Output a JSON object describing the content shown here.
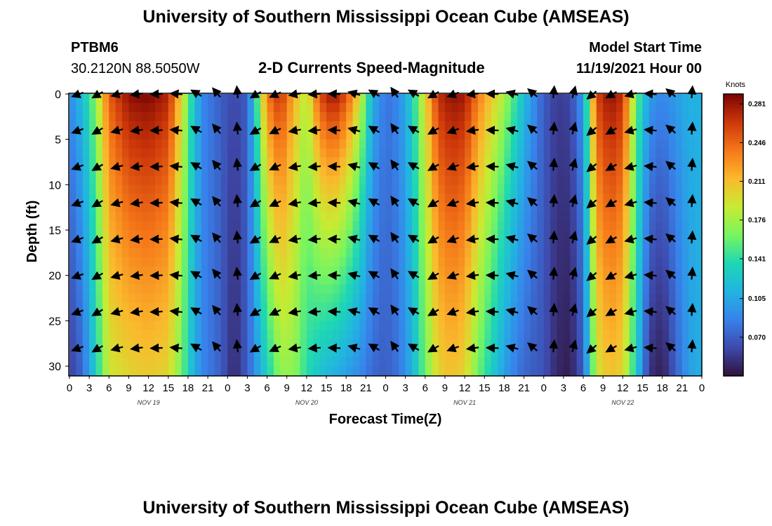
{
  "page": {
    "title": "University of Southern Mississippi Ocean Cube (AMSEAS)",
    "footer_title": "University of Southern Mississippi Ocean Cube (AMSEAS)",
    "station": "PTBM6",
    "coords": "30.2120N  88.5050W",
    "subtitle": "2-D Currents Speed-Magnitude",
    "model_start_label": "Model Start Time",
    "model_start_value": "11/19/2021 Hour 00"
  },
  "chart_data": {
    "type": "heatmap",
    "title": "2-D Currents Speed-Magnitude",
    "xlabel": "Forecast Time(Z)",
    "ylabel": "Depth (ft)",
    "x_range_hours": [
      0,
      96
    ],
    "y_range_ft": [
      0,
      31
    ],
    "x_tick_labels": [
      "0",
      "3",
      "6",
      "9",
      "12",
      "15",
      "18",
      "21",
      "0",
      "3",
      "6",
      "9",
      "12",
      "15",
      "18",
      "21",
      "0",
      "3",
      "6",
      "9",
      "12",
      "15",
      "18",
      "21",
      "0",
      "3",
      "6",
      "9",
      "12",
      "15",
      "18",
      "21",
      "0"
    ],
    "y_ticks": [
      0,
      5,
      10,
      15,
      20,
      25,
      30
    ],
    "y_tick_labels": [
      "0",
      "5",
      "10",
      "15",
      "20",
      "25",
      "30"
    ],
    "date_labels": [
      {
        "label": "NOV 19",
        "hour": 12
      },
      {
        "label": "NOV 20",
        "hour": 36
      },
      {
        "label": "NOV 21",
        "hour": 60
      },
      {
        "label": "NOV 22",
        "hour": 84
      }
    ],
    "colorbar": {
      "unit": "Knots",
      "min": 0.035,
      "max": 0.29,
      "tick_values": [
        0.281,
        0.246,
        0.211,
        0.176,
        0.141,
        0.105,
        0.07
      ],
      "tick_labels": [
        "0.281",
        "0.246",
        "0.211",
        "0.176",
        "0.141",
        "0.105",
        "0.070"
      ]
    },
    "speed_profile_by_hour": [
      {
        "hour": 0,
        "surface": 0.09,
        "bottom": 0.055
      },
      {
        "hour": 2,
        "surface": 0.12,
        "bottom": 0.075
      },
      {
        "hour": 4,
        "surface": 0.17,
        "bottom": 0.13
      },
      {
        "hour": 6,
        "surface": 0.25,
        "bottom": 0.19
      },
      {
        "hour": 9,
        "surface": 0.285,
        "bottom": 0.2
      },
      {
        "hour": 12,
        "surface": 0.29,
        "bottom": 0.205
      },
      {
        "hour": 15,
        "surface": 0.275,
        "bottom": 0.2
      },
      {
        "hour": 17,
        "surface": 0.2,
        "bottom": 0.16
      },
      {
        "hour": 18.5,
        "surface": 0.14,
        "bottom": 0.12
      },
      {
        "hour": 20,
        "surface": 0.09,
        "bottom": 0.09
      },
      {
        "hour": 23,
        "surface": 0.07,
        "bottom": 0.07
      },
      {
        "hour": 25,
        "surface": 0.06,
        "bottom": 0.045
      },
      {
        "hour": 27,
        "surface": 0.07,
        "bottom": 0.07
      },
      {
        "hour": 28.5,
        "surface": 0.15,
        "bottom": 0.1
      },
      {
        "hour": 30,
        "surface": 0.24,
        "bottom": 0.13
      },
      {
        "hour": 32,
        "surface": 0.27,
        "bottom": 0.17
      },
      {
        "hour": 34,
        "surface": 0.22,
        "bottom": 0.17
      },
      {
        "hour": 36,
        "surface": 0.18,
        "bottom": 0.14
      },
      {
        "hour": 38,
        "surface": 0.26,
        "bottom": 0.12
      },
      {
        "hour": 40,
        "surface": 0.285,
        "bottom": 0.11
      },
      {
        "hour": 42,
        "surface": 0.26,
        "bottom": 0.1
      },
      {
        "hour": 44,
        "surface": 0.2,
        "bottom": 0.09
      },
      {
        "hour": 46,
        "surface": 0.11,
        "bottom": 0.075
      },
      {
        "hour": 48,
        "surface": 0.08,
        "bottom": 0.07
      },
      {
        "hour": 50,
        "surface": 0.09,
        "bottom": 0.08
      },
      {
        "hour": 52,
        "surface": 0.13,
        "bottom": 0.11
      },
      {
        "hour": 54,
        "surface": 0.2,
        "bottom": 0.16
      },
      {
        "hour": 56,
        "surface": 0.27,
        "bottom": 0.2
      },
      {
        "hour": 58,
        "surface": 0.285,
        "bottom": 0.21
      },
      {
        "hour": 60,
        "surface": 0.28,
        "bottom": 0.2
      },
      {
        "hour": 62,
        "surface": 0.24,
        "bottom": 0.16
      },
      {
        "hour": 64,
        "surface": 0.21,
        "bottom": 0.13
      },
      {
        "hour": 66,
        "surface": 0.18,
        "bottom": 0.1
      },
      {
        "hour": 68,
        "surface": 0.14,
        "bottom": 0.08
      },
      {
        "hour": 70,
        "surface": 0.1,
        "bottom": 0.07
      },
      {
        "hour": 72,
        "surface": 0.07,
        "bottom": 0.065
      },
      {
        "hour": 74,
        "surface": 0.055,
        "bottom": 0.045
      },
      {
        "hour": 76,
        "surface": 0.06,
        "bottom": 0.04
      },
      {
        "hour": 78,
        "surface": 0.1,
        "bottom": 0.07
      },
      {
        "hour": 79,
        "surface": 0.18,
        "bottom": 0.13
      },
      {
        "hour": 80,
        "surface": 0.26,
        "bottom": 0.19
      },
      {
        "hour": 82,
        "surface": 0.285,
        "bottom": 0.21
      },
      {
        "hour": 84,
        "surface": 0.27,
        "bottom": 0.2
      },
      {
        "hour": 86,
        "surface": 0.16,
        "bottom": 0.13
      },
      {
        "hour": 88,
        "surface": 0.1,
        "bottom": 0.05
      },
      {
        "hour": 90,
        "surface": 0.09,
        "bottom": 0.04
      },
      {
        "hour": 92,
        "surface": 0.1,
        "bottom": 0.07
      },
      {
        "hour": 94,
        "surface": 0.11,
        "bottom": 0.1
      },
      {
        "hour": 96,
        "surface": 0.11,
        "bottom": 0.11
      }
    ],
    "vector_depths_ft": [
      0,
      4,
      8,
      12,
      16,
      20,
      24,
      28
    ],
    "vector_directions_deg_by_hour": [
      {
        "hour": 1.5,
        "dir": 250
      },
      {
        "hour": 4.5,
        "dir": 240
      },
      {
        "hour": 7.5,
        "dir": 255
      },
      {
        "hour": 10.5,
        "dir": 262
      },
      {
        "hour": 13.5,
        "dir": 268
      },
      {
        "hour": 16.5,
        "dir": 275
      },
      {
        "hour": 19.5,
        "dir": 300
      },
      {
        "hour": 22.5,
        "dir": 320
      },
      {
        "hour": 25.5,
        "dir": 355
      },
      {
        "hour": 28.5,
        "dir": 240
      },
      {
        "hour": 31.5,
        "dir": 245
      },
      {
        "hour": 34.5,
        "dir": 260
      },
      {
        "hour": 37.5,
        "dir": 265
      },
      {
        "hour": 40.5,
        "dir": 272
      },
      {
        "hour": 43.5,
        "dir": 285
      },
      {
        "hour": 46.5,
        "dir": 300
      },
      {
        "hour": 49.5,
        "dir": 325
      },
      {
        "hour": 52.5,
        "dir": 300
      },
      {
        "hour": 55.5,
        "dir": 240
      },
      {
        "hour": 58.5,
        "dir": 250
      },
      {
        "hour": 61.5,
        "dir": 262
      },
      {
        "hour": 64.5,
        "dir": 272
      },
      {
        "hour": 67.5,
        "dir": 285
      },
      {
        "hour": 70.5,
        "dir": 310
      },
      {
        "hour": 73.5,
        "dir": 5
      },
      {
        "hour": 76.5,
        "dir": 15
      },
      {
        "hour": 79.5,
        "dir": 230
      },
      {
        "hour": 82.5,
        "dir": 240
      },
      {
        "hour": 85.5,
        "dir": 255
      },
      {
        "hour": 88.5,
        "dir": 275
      },
      {
        "hour": 91.5,
        "dir": 310
      },
      {
        "hour": 94.5,
        "dir": 5
      }
    ]
  }
}
